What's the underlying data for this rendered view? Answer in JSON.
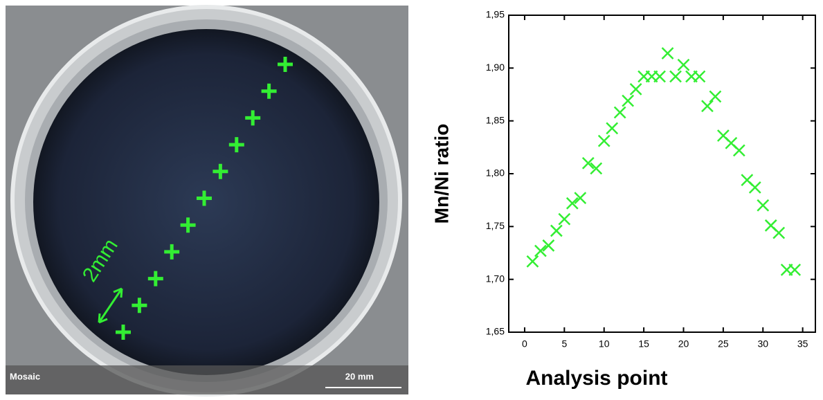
{
  "image": {
    "label_scale": "2mm",
    "caption": "Mosaic",
    "scale_bar": "20 mm"
  },
  "chart_data": {
    "type": "scatter",
    "x_label": "Analysis point",
    "y_label": "Mn/Ni ratio",
    "series": [
      {
        "color": "#33ee33",
        "x": [
          1,
          2,
          3,
          4,
          5,
          6,
          7,
          8,
          9,
          10,
          11,
          12,
          13,
          14,
          15,
          16,
          17,
          18,
          19,
          20,
          21,
          22,
          23,
          24,
          25,
          26,
          27,
          28,
          29,
          30,
          31,
          32,
          33,
          34
        ],
        "values": [
          1.717,
          1.727,
          1.732,
          1.746,
          1.757,
          1.772,
          1.777,
          1.81,
          1.805,
          1.831,
          1.843,
          1.858,
          1.869,
          1.88,
          1.892,
          1.892,
          1.892,
          1.914,
          1.892,
          1.903,
          1.892,
          1.892,
          1.864,
          1.873,
          1.836,
          1.829,
          1.822,
          1.794,
          1.787,
          1.77,
          1.751,
          1.744,
          1.709,
          1.709
        ]
      }
    ],
    "xlim": [
      -2,
      36.6
    ],
    "ylim": [
      1.65,
      1.95
    ],
    "xticks": [
      0,
      5,
      10,
      15,
      20,
      25,
      30,
      35
    ],
    "yticks": [
      {
        "value": 1.65,
        "label": "1,65"
      },
      {
        "value": 1.7,
        "label": "1,70"
      },
      {
        "value": 1.75,
        "label": "1,75"
      },
      {
        "value": 1.8,
        "label": "1,80"
      },
      {
        "value": 1.85,
        "label": "1,85"
      },
      {
        "value": 1.9,
        "label": "1,90"
      },
      {
        "value": 1.95,
        "label": "1,95"
      }
    ]
  }
}
